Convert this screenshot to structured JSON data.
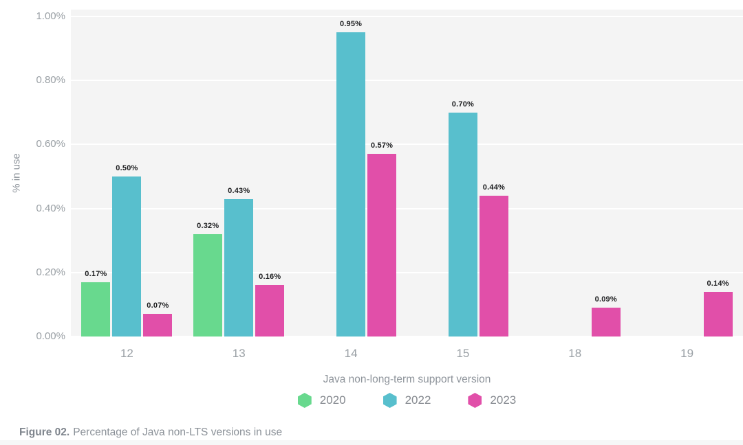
{
  "chart_data": {
    "type": "bar",
    "categories": [
      "12",
      "13",
      "14",
      "15",
      "18",
      "19"
    ],
    "series": [
      {
        "name": "2020",
        "color": "#68d98e",
        "values": [
          0.17,
          0.32,
          null,
          null,
          null,
          null
        ],
        "labels": [
          "0.17%",
          "0.32%",
          null,
          null,
          null,
          null
        ]
      },
      {
        "name": "2022",
        "color": "#58bfcd",
        "values": [
          0.5,
          0.43,
          0.95,
          0.7,
          null,
          null
        ],
        "labels": [
          "0.50%",
          "0.43%",
          "0.95%",
          "0.70%",
          null,
          null
        ]
      },
      {
        "name": "2023",
        "color": "#e14fa9",
        "values": [
          0.07,
          0.16,
          0.57,
          0.44,
          0.09,
          0.14
        ],
        "labels": [
          "0.07%",
          "0.16%",
          "0.57%",
          "0.44%",
          "0.09%",
          "0.14%"
        ]
      }
    ],
    "xlabel": "Java non-long-term support version",
    "ylabel": "% in use",
    "ylim": [
      0,
      1.0
    ],
    "yticks": [
      {
        "label": "0.00%",
        "value": 0.0
      },
      {
        "label": "0.20%",
        "value": 0.2
      },
      {
        "label": "0.40%",
        "value": 0.4
      },
      {
        "label": "0.60%",
        "value": 0.6
      },
      {
        "label": "0.80%",
        "value": 0.8
      },
      {
        "label": "1.00%",
        "value": 1.0
      }
    ],
    "grid": true,
    "legend_position": "bottom",
    "legend": [
      "2020",
      "2022",
      "2023"
    ]
  },
  "caption": {
    "prefix": "Figure 02.",
    "text": "Percentage of Java non-LTS versions in use"
  },
  "colors": {
    "plot_background": "#f4f4f4",
    "gridline": "#ffffff",
    "axis_text": "#9aa0a5",
    "axis_title": "#8e949b",
    "bar_label": "#1c1d1f",
    "legend_text": "#85898f",
    "caption_text": "#8a9097",
    "series_2020": "#68d98e",
    "series_2022": "#58bfcd",
    "series_2023": "#e14fa9"
  }
}
